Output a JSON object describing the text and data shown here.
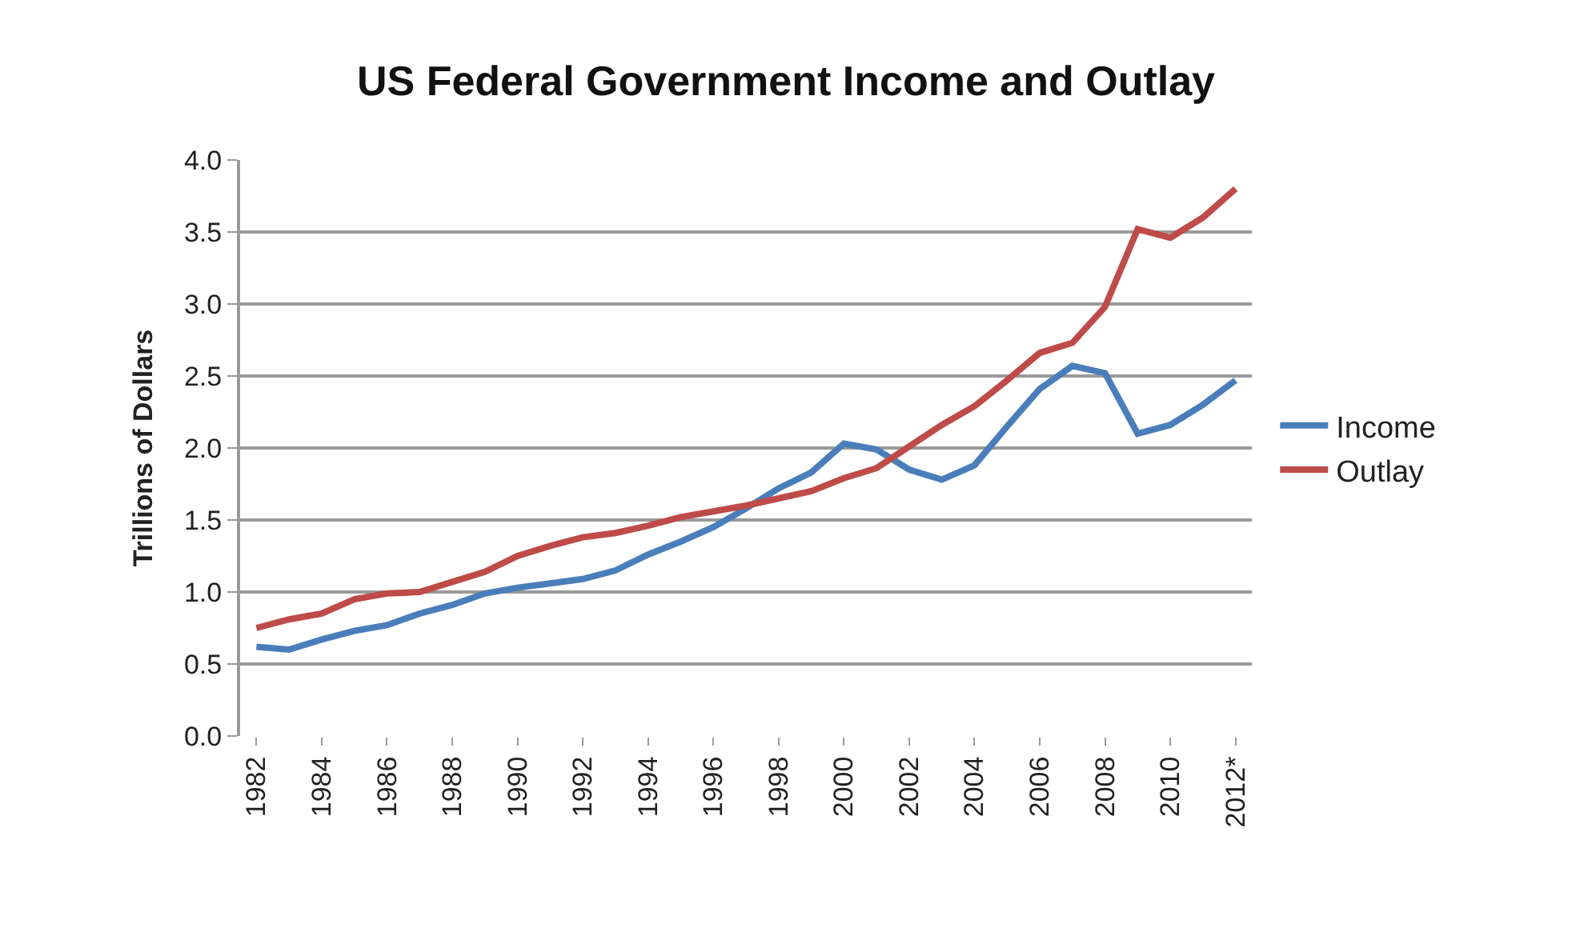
{
  "chart_data": {
    "type": "line",
    "title": "US Federal Government Income and Outlay",
    "ylabel": "Trillions of Dollars",
    "categories": [
      "1982",
      null,
      "1984",
      null,
      "1986",
      null,
      "1988",
      null,
      "1990",
      null,
      "1992",
      null,
      "1994",
      null,
      "1996",
      null,
      "1998",
      null,
      "2000",
      null,
      "2002",
      null,
      "2004",
      null,
      "2006",
      null,
      "2008",
      null,
      "2010",
      null,
      "2012*"
    ],
    "series": [
      {
        "name": "Income",
        "color": "#4a7ebb",
        "values": [
          0.62,
          0.6,
          0.67,
          0.73,
          0.77,
          0.85,
          0.91,
          0.99,
          1.03,
          1.06,
          1.09,
          1.15,
          1.26,
          1.35,
          1.45,
          1.58,
          1.72,
          1.83,
          2.03,
          1.99,
          1.85,
          1.78,
          1.88,
          2.15,
          2.41,
          2.57,
          2.52,
          2.1,
          2.16,
          2.3,
          2.47
        ]
      },
      {
        "name": "Outlay",
        "color": "#be4b48",
        "values": [
          0.75,
          0.81,
          0.85,
          0.95,
          0.99,
          1.0,
          1.07,
          1.14,
          1.25,
          1.32,
          1.38,
          1.41,
          1.46,
          1.52,
          1.56,
          1.6,
          1.65,
          1.7,
          1.79,
          1.86,
          2.01,
          2.16,
          2.29,
          2.47,
          2.66,
          2.73,
          2.98,
          3.52,
          3.46,
          3.6,
          3.8
        ]
      }
    ],
    "ylim": [
      0,
      4
    ],
    "yticks": [
      {
        "value": 0,
        "label": "0.0"
      },
      {
        "value": 0.5,
        "label": "0.5"
      },
      {
        "value": 1,
        "label": "1.0"
      },
      {
        "value": 1.5,
        "label": "1.5"
      },
      {
        "value": 2,
        "label": "2.0"
      },
      {
        "value": 2.5,
        "label": "2.5"
      },
      {
        "value": 3,
        "label": "3.0"
      },
      {
        "value": 3.5,
        "label": "3.5"
      },
      {
        "value": 4,
        "label": "4.0"
      }
    ],
    "grid": "y",
    "legend": "right",
    "marker": "none",
    "line_style": "solid"
  }
}
